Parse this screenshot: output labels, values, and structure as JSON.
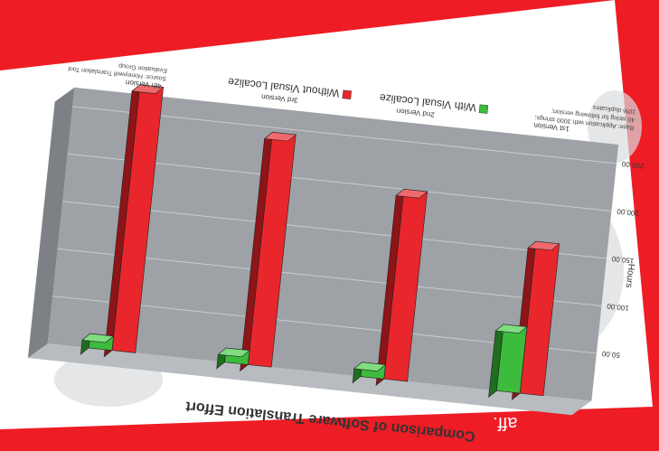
{
  "banner": {
    "text": "aff."
  },
  "chart_data": {
    "type": "bar",
    "orientation": "rotated-180",
    "title": "Comparison of Software Translation Effort",
    "ylabel": "Hours",
    "ylim": [
      0,
      270
    ],
    "yticks": [
      "50.00",
      "100.00",
      "150.00",
      "200.00",
      "250.00"
    ],
    "categories": [
      "1st Version",
      "2nd Version",
      "3rd Version",
      "4th Version"
    ],
    "series": [
      {
        "name": "Without Visual Localize",
        "color": "#e8262b",
        "values": [
          160,
          200,
          245,
          280
        ]
      },
      {
        "name": "With Visual Localize",
        "color": "#3dbb3d",
        "values": [
          70,
          15,
          15,
          15
        ]
      }
    ],
    "legend": "top",
    "grid": true,
    "notes": [
      "Base: Application with 3000 strings;",
      "40 string for following version;",
      "10% duplicates"
    ],
    "source": [
      "Source: Honeywell Translation Tool",
      "Evaluation Group"
    ]
  }
}
